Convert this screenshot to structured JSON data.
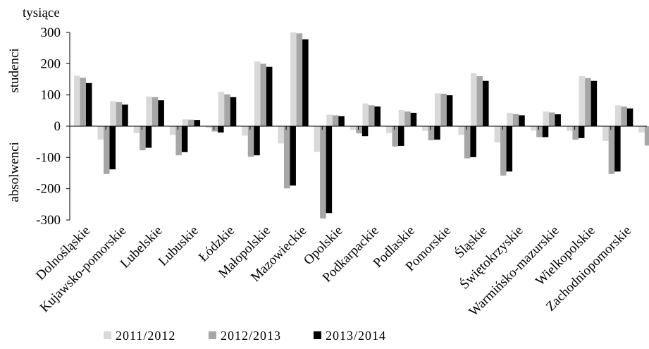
{
  "chart_data": {
    "type": "bar",
    "unit_label": "tysiące",
    "upper_label": "studenci",
    "lower_label": "absolwenci",
    "ylim": [
      -300,
      300
    ],
    "yticks": [
      300,
      200,
      100,
      0,
      -100,
      -200,
      -300
    ],
    "ytick_labels": [
      "300",
      "200",
      "100",
      "0",
      "-100",
      "-200",
      "-300"
    ],
    "grid": false,
    "legend_position": "bottom-left",
    "categories": [
      "Dolnośląskie",
      "Kujawsko-pomorskie",
      "Lubelskie",
      "Lubuskie",
      "Łódzkie",
      "Małopolskie",
      "Mazowieckie",
      "Opolskie",
      "Podkarpackie",
      "Podlaskie",
      "Pomorskie",
      "Śląskie",
      "Świętokrzyskie",
      "Warmińsko-mazurskie",
      "Wielkopolskie",
      "Zachodniopomorskie"
    ],
    "series": [
      {
        "name": "2011/2012",
        "color": "#d9d9d9",
        "studenci": [
          162,
          80,
          95,
          22,
          110,
          207,
          300,
          37,
          73,
          52,
          105,
          170,
          43,
          47,
          160,
          67
        ],
        "absolwenci": [
          -43,
          -22,
          -28,
          -6,
          -30,
          -55,
          -82,
          -12,
          -22,
          -15,
          -28,
          -52,
          -14,
          -15,
          -47,
          -20
        ]
      },
      {
        "name": "2012/2013",
        "color": "#a6a6a6",
        "studenci": [
          155,
          77,
          93,
          21,
          102,
          200,
          297,
          35,
          67,
          47,
          104,
          160,
          39,
          44,
          154,
          63
        ],
        "absolwenci": [
          -153,
          -77,
          -93,
          -17,
          -98,
          -199,
          -295,
          -23,
          -65,
          -45,
          -103,
          -158,
          -35,
          -43,
          -153,
          -62
        ]
      },
      {
        "name": "2013/2014",
        "color": "#000000",
        "studenci": [
          138,
          69,
          83,
          20,
          93,
          190,
          278,
          32,
          63,
          43,
          99,
          145,
          35,
          38,
          145,
          57
        ],
        "absolwenci": [
          -138,
          -69,
          -83,
          -20,
          -93,
          -190,
          -278,
          -32,
          -63,
          -43,
          -99,
          -145,
          -35,
          -38,
          -145,
          -57
        ]
      }
    ]
  }
}
